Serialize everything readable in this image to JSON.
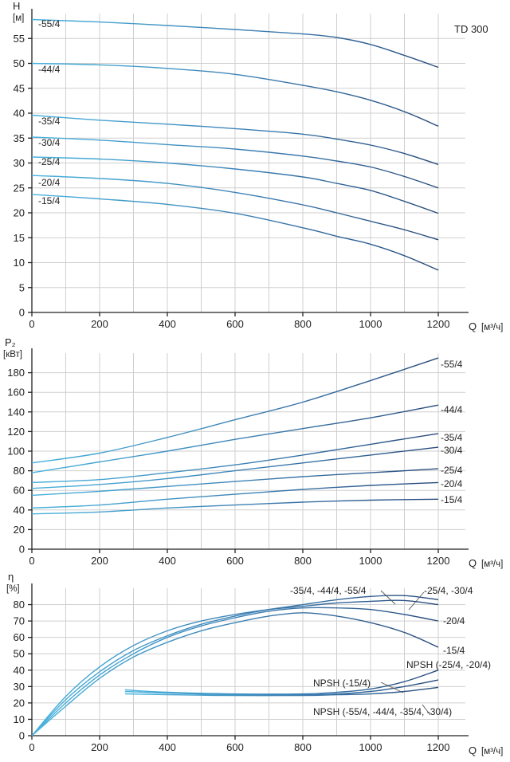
{
  "chart_data": [
    {
      "type": "line",
      "title": "TD 300",
      "ylabel": "H",
      "yunit": "[м]",
      "xlabel": "Q",
      "xunit": "[м³/ч]",
      "xlim": [
        0,
        1280
      ],
      "ylim": [
        0,
        60
      ],
      "xticks": [
        0,
        200,
        400,
        600,
        800,
        1000,
        1200
      ],
      "yticks": [
        0,
        5,
        10,
        15,
        20,
        25,
        30,
        35,
        40,
        45,
        50,
        55
      ],
      "grid": true,
      "series": [
        {
          "name": "-55/4",
          "x": [
            0,
            200,
            400,
            600,
            800,
            900,
            1000,
            1100,
            1200
          ],
          "y": [
            58.8,
            58.3,
            57.6,
            56.8,
            55.9,
            55.2,
            53.8,
            51.6,
            49.2
          ]
        },
        {
          "name": "-44/4",
          "x": [
            0,
            200,
            400,
            600,
            800,
            900,
            1000,
            1100,
            1200
          ],
          "y": [
            50.0,
            49.7,
            49.0,
            47.8,
            45.6,
            44.3,
            42.6,
            40.3,
            37.4
          ]
        },
        {
          "name": "-35/4",
          "x": [
            0,
            200,
            400,
            600,
            800,
            900,
            1000,
            1100,
            1200
          ],
          "y": [
            39.6,
            38.6,
            37.8,
            36.9,
            35.8,
            34.8,
            33.6,
            31.9,
            29.7
          ]
        },
        {
          "name": "-30/4",
          "x": [
            0,
            200,
            400,
            600,
            800,
            900,
            1000,
            1100,
            1200
          ],
          "y": [
            35.2,
            34.6,
            33.7,
            32.8,
            31.4,
            30.4,
            29.2,
            27.3,
            25.0
          ]
        },
        {
          "name": "-25/4",
          "x": [
            0,
            200,
            400,
            600,
            800,
            900,
            1000,
            1100,
            1200
          ],
          "y": [
            31.2,
            30.8,
            30.0,
            28.8,
            27.2,
            25.9,
            24.5,
            22.3,
            19.9
          ]
        },
        {
          "name": "-20/4",
          "x": [
            0,
            200,
            400,
            600,
            800,
            900,
            1000,
            1100,
            1200
          ],
          "y": [
            27.5,
            26.9,
            25.9,
            24.1,
            21.6,
            20.0,
            18.3,
            16.6,
            14.6
          ]
        },
        {
          "name": "-15/4",
          "x": [
            0,
            200,
            400,
            600,
            800,
            900,
            1000,
            1100,
            1200
          ],
          "y": [
            23.7,
            22.8,
            21.7,
            19.9,
            17.0,
            15.3,
            13.7,
            11.4,
            8.5
          ]
        }
      ]
    },
    {
      "type": "line",
      "ylabel": "P₂",
      "yunit": "[кВт]",
      "xlabel": "Q",
      "xunit": "[м³/ч]",
      "xlim": [
        0,
        1280
      ],
      "ylim": [
        0,
        200
      ],
      "xticks": [
        0,
        200,
        400,
        600,
        800,
        1000,
        1200
      ],
      "yticks": [
        0,
        20,
        40,
        60,
        80,
        100,
        120,
        140,
        160,
        180
      ],
      "grid": true,
      "series": [
        {
          "name": "-55/4",
          "x": [
            0,
            200,
            400,
            600,
            800,
            1000,
            1200
          ],
          "y": [
            88,
            98,
            114,
            132,
            150,
            172,
            195
          ]
        },
        {
          "name": "-44/4",
          "x": [
            0,
            200,
            400,
            600,
            800,
            1000,
            1200
          ],
          "y": [
            78,
            89,
            100,
            112,
            123,
            134,
            147
          ]
        },
        {
          "name": "-35/4",
          "x": [
            0,
            200,
            400,
            600,
            800,
            1000,
            1200
          ],
          "y": [
            68,
            71,
            78,
            86,
            96,
            107,
            118
          ]
        },
        {
          "name": "-30/4",
          "x": [
            0,
            200,
            400,
            600,
            800,
            1000,
            1200
          ],
          "y": [
            62,
            66,
            72,
            80,
            88,
            96,
            104
          ]
        },
        {
          "name": "-25/4",
          "x": [
            0,
            200,
            400,
            600,
            800,
            1000,
            1200
          ],
          "y": [
            55,
            59,
            64,
            69,
            74,
            78,
            82
          ]
        },
        {
          "name": "-20/4",
          "x": [
            0,
            200,
            400,
            600,
            800,
            1000,
            1200
          ],
          "y": [
            42,
            45,
            51,
            56,
            61,
            65,
            68
          ]
        },
        {
          "name": "-15/4",
          "x": [
            0,
            200,
            400,
            600,
            800,
            1000,
            1200
          ],
          "y": [
            36,
            38,
            42,
            45,
            48,
            50,
            51
          ]
        }
      ]
    },
    {
      "type": "line",
      "ylabel": "η",
      "yunit": "[%]",
      "xlabel": "Q",
      "xunit": "[м³/ч]",
      "xlim": [
        0,
        1280
      ],
      "ylim": [
        0,
        90
      ],
      "xticks": [
        0,
        200,
        400,
        600,
        800,
        1000,
        1200
      ],
      "yticks": [
        0,
        10,
        20,
        30,
        40,
        50,
        60,
        70,
        80
      ],
      "grid": true,
      "series": [
        {
          "name": "-35/4, -44/4, -55/4",
          "x": [
            0,
            100,
            200,
            300,
            400,
            500,
            600,
            700,
            800,
            900,
            1000,
            1100,
            1200
          ],
          "y": [
            0,
            24,
            42,
            55,
            64,
            70,
            74,
            77,
            79,
            81,
            82,
            82.5,
            80
          ]
        },
        {
          "name": "-25/4, -30/4",
          "x": [
            0,
            100,
            200,
            300,
            400,
            500,
            600,
            700,
            800,
            900,
            1000,
            1100,
            1200
          ],
          "y": [
            0,
            22,
            39,
            52,
            61,
            68,
            73,
            77,
            80,
            83,
            85,
            85.5,
            83
          ]
        },
        {
          "name": "-20/4",
          "x": [
            0,
            100,
            200,
            300,
            400,
            500,
            600,
            700,
            800,
            900,
            1000,
            1100,
            1200
          ],
          "y": [
            0,
            20,
            37,
            50,
            60,
            67,
            72,
            76,
            78,
            78,
            77,
            74,
            70
          ]
        },
        {
          "name": "-15/4",
          "x": [
            0,
            100,
            200,
            300,
            400,
            500,
            600,
            700,
            800,
            900,
            1000,
            1100,
            1200
          ],
          "y": [
            0,
            18,
            35,
            48,
            57,
            64,
            69,
            73,
            75,
            73,
            69,
            63,
            54
          ]
        },
        {
          "name": "NPSH (-25/4, -20/4)",
          "x": [
            275,
            400,
            600,
            800,
            900,
            1000,
            1100,
            1200
          ],
          "y": [
            28,
            26.5,
            25.5,
            25.5,
            26.5,
            28.5,
            33,
            40
          ]
        },
        {
          "name": "NPSH (-15/4)",
          "x": [
            275,
            400,
            600,
            800,
            900,
            1000,
            1100,
            1200
          ],
          "y": [
            27,
            26,
            25,
            25,
            25.5,
            27,
            30,
            34
          ]
        },
        {
          "name": "NPSH (-55/4, -44/4, -35/4, -30/4)",
          "x": [
            275,
            400,
            600,
            800,
            900,
            1000,
            1100,
            1200
          ],
          "y": [
            25.5,
            25,
            24.5,
            24.5,
            25,
            25.5,
            27,
            29.5
          ]
        }
      ]
    }
  ]
}
